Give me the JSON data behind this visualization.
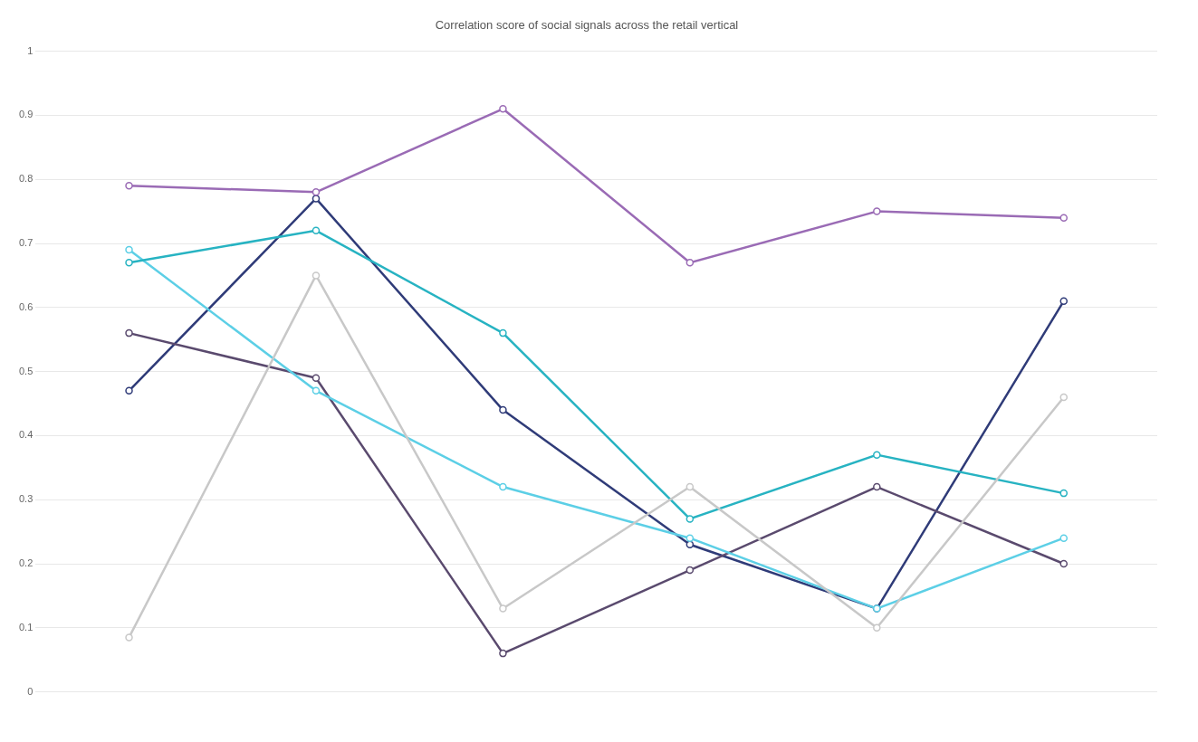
{
  "chart_data": {
    "type": "line",
    "title": "Correlation score of social signals across the retail vertical",
    "categories": [
      null,
      null,
      null,
      null,
      null,
      null
    ],
    "series": [
      {
        "color": "#9a6bb5",
        "values": [
          0.79,
          0.78,
          0.91,
          0.67,
          0.75,
          0.74
        ]
      },
      {
        "color": "#c8c8c8",
        "values": [
          0.085,
          0.65,
          0.13,
          0.32,
          0.1,
          0.46
        ]
      },
      {
        "color": "#27b3c2",
        "values": [
          0.67,
          0.72,
          0.56,
          0.27,
          0.37,
          0.31
        ]
      },
      {
        "color": "#5ccfe6",
        "values": [
          0.69,
          0.47,
          0.32,
          0.24,
          0.13,
          0.24
        ]
      },
      {
        "color": "#5a4a6e",
        "values": [
          0.56,
          0.49,
          0.06,
          0.19,
          0.32,
          0.2
        ]
      },
      {
        "color": "#2f3b78",
        "values": [
          0.47,
          0.77,
          0.44,
          0.23,
          0.13,
          0.61
        ]
      }
    ],
    "ylim": [
      0,
      1
    ],
    "yticks": [
      0,
      0.1,
      0.2,
      0.3,
      0.4,
      0.5,
      0.6,
      0.7,
      0.8,
      0.9,
      1
    ],
    "grid": "y",
    "marker": "circle",
    "line_style": "solid"
  }
}
